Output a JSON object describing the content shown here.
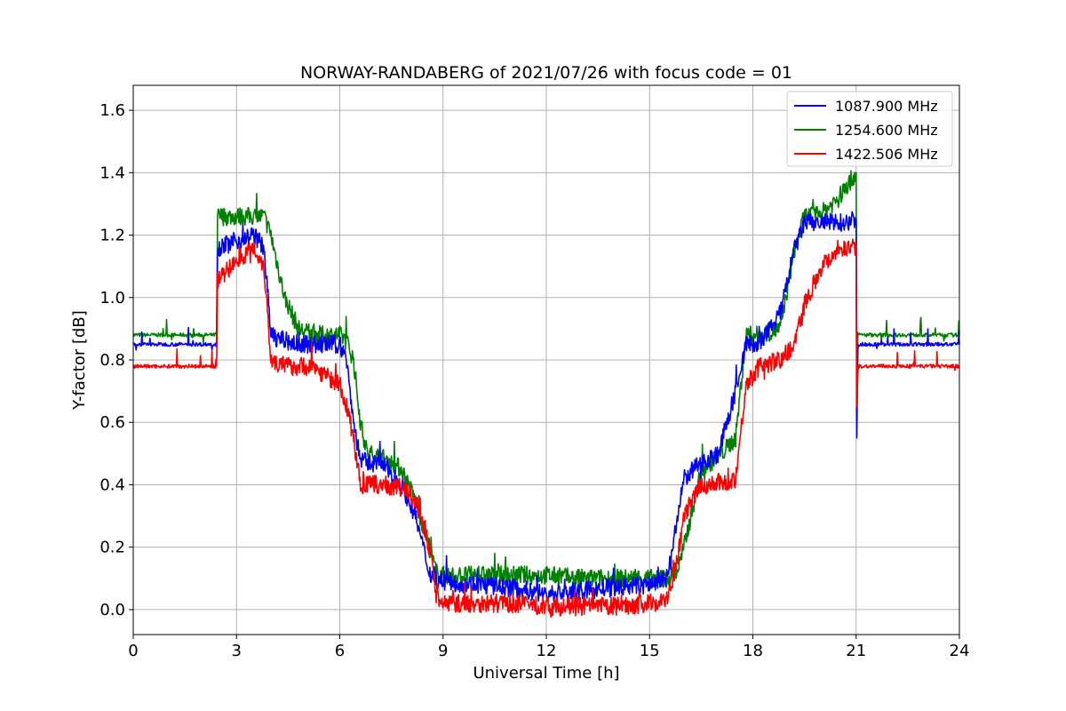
{
  "chart_data": {
    "type": "line",
    "title": "NORWAY-RANDABERG of 2021/07/26 with focus code = 01",
    "xlabel": "Universal Time [h]",
    "ylabel": "Y-factor [dB]",
    "xlim": [
      0,
      24
    ],
    "ylim": [
      -0.08,
      1.68
    ],
    "xticks": [
      0,
      3,
      6,
      9,
      12,
      15,
      18,
      21,
      24
    ],
    "xtick_labels": [
      "0",
      "3",
      "6",
      "9",
      "12",
      "15",
      "18",
      "21",
      "24"
    ],
    "yticks": [
      0.0,
      0.2,
      0.4,
      0.6,
      0.8,
      1.0,
      1.2,
      1.4,
      1.6
    ],
    "ytick_labels": [
      "0.0",
      "0.2",
      "0.4",
      "0.6",
      "0.8",
      "1.0",
      "1.2",
      "1.4",
      "1.6"
    ],
    "grid": true,
    "legend_position": "top-right",
    "series": [
      {
        "name": "1087.900 MHz",
        "color": "#0000ff",
        "x": [
          0.0,
          2.42,
          2.45,
          3.0,
          3.5,
          3.8,
          4.0,
          4.4,
          4.8,
          5.2,
          6.0,
          6.2,
          6.4,
          6.6,
          6.8,
          7.2,
          7.8,
          8.2,
          8.6,
          8.8,
          9.0,
          10.0,
          11.0,
          12.0,
          13.0,
          14.0,
          15.0,
          15.5,
          15.8,
          16.0,
          16.5,
          17.0,
          17.5,
          17.8,
          18.2,
          18.8,
          19.2,
          19.5,
          20.0,
          20.5,
          21.0,
          21.02,
          21.05,
          22.0,
          23.0,
          24.0
        ],
        "y": [
          0.85,
          0.85,
          1.16,
          1.18,
          1.2,
          1.16,
          0.88,
          0.86,
          0.85,
          0.85,
          0.85,
          0.8,
          0.6,
          0.48,
          0.47,
          0.47,
          0.4,
          0.3,
          0.12,
          0.1,
          0.09,
          0.08,
          0.07,
          0.05,
          0.06,
          0.07,
          0.08,
          0.1,
          0.28,
          0.42,
          0.47,
          0.5,
          0.7,
          0.85,
          0.85,
          0.95,
          1.15,
          1.24,
          1.24,
          1.24,
          1.25,
          0.55,
          0.85,
          0.85,
          0.85,
          0.85
        ]
      },
      {
        "name": "1254.600 MHz",
        "color": "#008000",
        "x": [
          0.0,
          2.42,
          2.45,
          3.0,
          3.5,
          3.8,
          4.0,
          4.4,
          4.8,
          5.2,
          6.0,
          6.2,
          6.4,
          6.6,
          6.8,
          7.2,
          7.8,
          8.2,
          8.6,
          8.8,
          9.0,
          10.0,
          11.0,
          12.0,
          13.0,
          14.0,
          15.0,
          15.5,
          15.8,
          16.0,
          16.5,
          17.0,
          17.5,
          17.8,
          18.2,
          18.8,
          19.2,
          19.5,
          20.0,
          20.5,
          21.0,
          21.02,
          21.05,
          22.0,
          23.0,
          24.0
        ],
        "y": [
          0.88,
          0.88,
          1.26,
          1.26,
          1.26,
          1.26,
          1.2,
          1.0,
          0.9,
          0.88,
          0.88,
          0.86,
          0.8,
          0.6,
          0.5,
          0.49,
          0.45,
          0.35,
          0.2,
          0.12,
          0.11,
          0.11,
          0.11,
          0.11,
          0.1,
          0.1,
          0.1,
          0.1,
          0.12,
          0.2,
          0.45,
          0.49,
          0.55,
          0.88,
          0.88,
          0.9,
          1.15,
          1.26,
          1.27,
          1.32,
          1.4,
          0.6,
          0.88,
          0.88,
          0.88,
          0.88
        ]
      },
      {
        "name": "1422.506 MHz",
        "color": "#ff0000",
        "x": [
          0.0,
          2.42,
          2.45,
          3.0,
          3.5,
          3.8,
          4.0,
          4.4,
          4.8,
          5.2,
          6.0,
          6.2,
          6.4,
          6.6,
          6.8,
          7.2,
          7.8,
          8.2,
          8.6,
          8.8,
          9.0,
          10.0,
          11.0,
          12.0,
          13.0,
          14.0,
          15.0,
          15.5,
          15.8,
          16.0,
          16.5,
          17.0,
          17.5,
          17.8,
          18.2,
          18.8,
          19.2,
          19.5,
          20.0,
          20.5,
          21.0,
          21.02,
          21.05,
          22.0,
          23.0,
          24.0
        ],
        "y": [
          0.78,
          0.78,
          1.05,
          1.12,
          1.16,
          1.1,
          0.8,
          0.78,
          0.78,
          0.78,
          0.72,
          0.65,
          0.55,
          0.4,
          0.4,
          0.4,
          0.39,
          0.35,
          0.2,
          0.05,
          0.02,
          0.02,
          0.02,
          0.01,
          0.01,
          0.01,
          0.02,
          0.03,
          0.15,
          0.3,
          0.4,
          0.4,
          0.42,
          0.72,
          0.78,
          0.8,
          0.85,
          0.98,
          1.1,
          1.16,
          1.16,
          0.62,
          0.78,
          0.78,
          0.78,
          0.78
        ]
      }
    ]
  }
}
